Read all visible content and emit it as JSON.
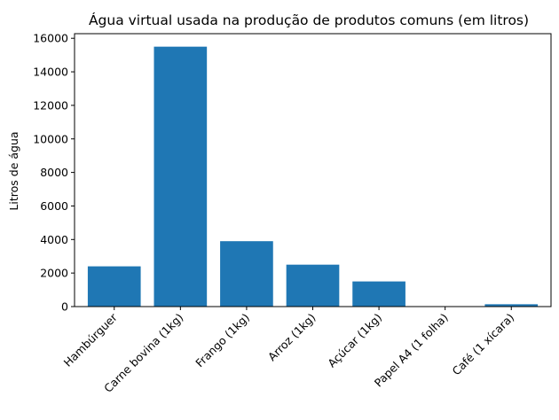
{
  "chart_data": {
    "type": "bar",
    "title": "Água virtual usada na produção de produtos comuns (em litros)",
    "xlabel": "",
    "ylabel": "Litros de água",
    "categories": [
      "Hambúrguer",
      "Carne bovina (1kg)",
      "Frango (1kg)",
      "Arroz (1kg)",
      "Açúcar (1kg)",
      "Papel A4 (1 folha)",
      "Café (1 xícara)"
    ],
    "values": [
      2400,
      15500,
      3900,
      2500,
      1500,
      10,
      140
    ],
    "ylim": [
      0,
      16275
    ],
    "yticks": [
      0,
      2000,
      4000,
      6000,
      8000,
      10000,
      12000,
      14000,
      16000
    ],
    "grid": false,
    "bar_color": "#1f77b4"
  }
}
